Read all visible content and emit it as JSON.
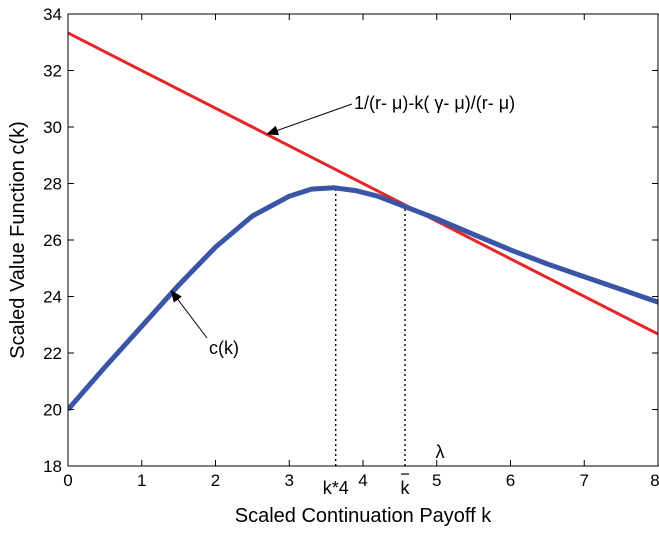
{
  "chart_data": {
    "type": "line",
    "xlabel": "Scaled Continuation Payoff k",
    "ylabel": "Scaled Value Function c(k)",
    "xlim": [
      0,
      8
    ],
    "ylim": [
      18,
      34
    ],
    "xticks": [
      "0",
      "1",
      "2",
      "3",
      "4",
      "5",
      "6",
      "7",
      "8"
    ],
    "yticks": [
      "18",
      "20",
      "22",
      "24",
      "26",
      "28",
      "30",
      "32",
      "34"
    ],
    "grid": false,
    "series": [
      {
        "name": "1/(r- μ)-k( γ- μ)/(r- μ)",
        "color": "#e8262a",
        "x": [
          0,
          8
        ],
        "y": [
          33.33,
          22.67
        ]
      },
      {
        "name": "c(k)",
        "color": "#3b55a6",
        "x": [
          0,
          0.5,
          1.0,
          1.5,
          2.0,
          2.5,
          3.0,
          3.3,
          3.6,
          3.9,
          4.2,
          4.5,
          4.8,
          5.0,
          5.5,
          6.0,
          6.5,
          7.0,
          7.5,
          8.0
        ],
        "y": [
          20.0,
          21.5,
          22.95,
          24.4,
          25.75,
          26.85,
          27.55,
          27.8,
          27.85,
          27.75,
          27.55,
          27.25,
          26.95,
          26.75,
          26.2,
          25.65,
          25.15,
          24.7,
          24.25,
          23.8
        ]
      }
    ],
    "vlines": [
      {
        "x": 3.63,
        "y_top": 27.85,
        "label": "k*4"
      },
      {
        "x": 4.57,
        "y_top": 27.3,
        "label": "k"
      }
    ],
    "annotations": [
      {
        "text": "1/(r- μ)-k( γ- μ)/(r- μ)",
        "arrow_to": [
          2.7,
          29.75
        ]
      },
      {
        "text": "c(k)",
        "arrow_to": [
          1.4,
          24.2
        ]
      }
    ],
    "extra_labels": [
      "λ"
    ]
  }
}
